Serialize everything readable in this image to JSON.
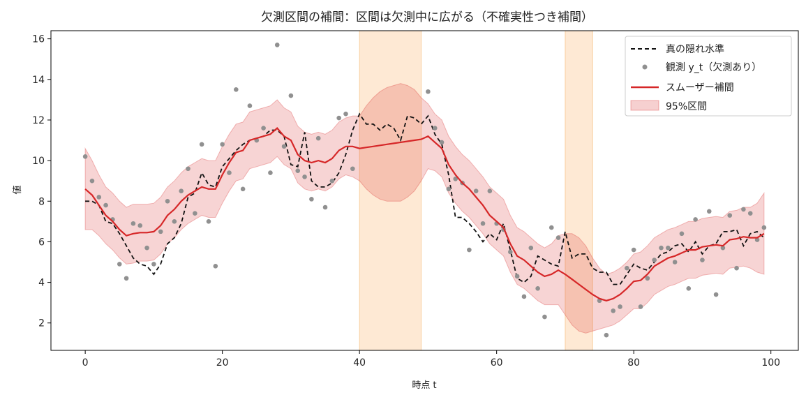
{
  "chart_data": {
    "type": "line",
    "title": "欠測区間の補間：区間は欠測中に広がる（不確実性つき補間）",
    "xlabel": "時点 t",
    "ylabel": "値",
    "xlim": [
      -5,
      104
    ],
    "ylim": [
      0.65,
      16.4
    ],
    "xticks": [
      0,
      20,
      40,
      60,
      80,
      100
    ],
    "yticks": [
      2,
      4,
      6,
      8,
      10,
      12,
      14,
      16
    ],
    "grid": false,
    "legend_position": "top-right",
    "missing_intervals": [
      [
        40,
        49
      ],
      [
        70,
        74
      ]
    ],
    "colors": {
      "truth": "#111111",
      "observed": "#909090",
      "smoother": "#d62728",
      "band": "#d62728",
      "missing": "#fdd7b0"
    },
    "legend": {
      "truth": "真の隠れ水準",
      "observed": "観測 y_t（欠測あり）",
      "smoother": "スムーザー補間",
      "band": "95%区間"
    },
    "series": [
      {
        "name": "真の隠れ水準",
        "x": [
          0,
          1,
          2,
          3,
          4,
          5,
          6,
          7,
          8,
          9,
          10,
          11,
          12,
          13,
          14,
          15,
          16,
          17,
          18,
          19,
          20,
          21,
          22,
          23,
          24,
          25,
          26,
          27,
          28,
          29,
          30,
          31,
          32,
          33,
          34,
          35,
          36,
          37,
          38,
          39,
          40,
          41,
          42,
          43,
          44,
          45,
          46,
          47,
          48,
          49,
          50,
          51,
          52,
          53,
          54,
          55,
          56,
          57,
          58,
          59,
          60,
          61,
          62,
          63,
          64,
          65,
          66,
          67,
          68,
          69,
          70,
          71,
          72,
          73,
          74,
          75,
          76,
          77,
          78,
          79,
          80,
          81,
          82,
          83,
          84,
          85,
          86,
          87,
          88,
          89,
          90,
          91,
          92,
          93,
          94,
          95,
          96,
          97,
          98,
          99
        ],
        "values": [
          8.0,
          8.0,
          7.8,
          7.0,
          6.9,
          6.4,
          5.8,
          5.2,
          4.9,
          4.8,
          4.4,
          4.9,
          5.9,
          6.2,
          6.9,
          8.2,
          8.4,
          9.4,
          8.8,
          8.7,
          9.7,
          10.1,
          10.5,
          10.8,
          11.0,
          11.1,
          11.2,
          11.5,
          11.5,
          11.2,
          9.8,
          9.7,
          11.4,
          9.0,
          8.7,
          8.7,
          8.9,
          9.4,
          10.3,
          11.5,
          12.3,
          11.8,
          11.8,
          11.5,
          11.8,
          11.6,
          11.0,
          12.2,
          12.1,
          11.8,
          12.2,
          11.3,
          10.8,
          9.3,
          7.2,
          7.2,
          6.9,
          6.5,
          6.0,
          6.4,
          6.1,
          6.9,
          5.6,
          4.2,
          4.0,
          4.3,
          5.3,
          5.1,
          4.9,
          4.8,
          6.5,
          5.2,
          5.4,
          5.4,
          4.7,
          4.5,
          4.5,
          3.9,
          3.9,
          4.4,
          4.9,
          4.7,
          4.6,
          5.0,
          5.4,
          5.5,
          5.8,
          5.9,
          5.5,
          6.0,
          5.4,
          5.8,
          5.9,
          6.5,
          6.5,
          6.6,
          5.8,
          6.4,
          6.5,
          6.2
        ]
      },
      {
        "name": "観測 y_t（欠測あり）",
        "x": [
          0,
          1,
          2,
          3,
          4,
          5,
          6,
          7,
          8,
          9,
          10,
          11,
          12,
          13,
          14,
          15,
          16,
          17,
          18,
          19,
          20,
          21,
          22,
          23,
          24,
          25,
          26,
          27,
          28,
          29,
          30,
          31,
          32,
          33,
          34,
          35,
          36,
          37,
          38,
          39,
          50,
          51,
          52,
          53,
          54,
          55,
          56,
          57,
          58,
          59,
          60,
          61,
          62,
          63,
          64,
          65,
          66,
          67,
          68,
          69,
          75,
          76,
          77,
          78,
          79,
          80,
          81,
          82,
          83,
          84,
          85,
          86,
          87,
          88,
          89,
          90,
          91,
          92,
          93,
          94,
          95,
          96,
          97,
          98,
          99
        ],
        "values": [
          10.2,
          9.0,
          8.2,
          7.8,
          7.1,
          4.9,
          4.2,
          6.9,
          6.8,
          5.7,
          4.9,
          6.5,
          8.0,
          7.0,
          8.5,
          9.6,
          7.4,
          10.8,
          7.0,
          4.8,
          10.8,
          9.4,
          13.5,
          8.6,
          12.7,
          11.0,
          11.6,
          9.4,
          15.7,
          10.7,
          13.2,
          9.5,
          9.2,
          8.1,
          11.1,
          7.7,
          9.0,
          12.1,
          12.3,
          9.6,
          13.4,
          11.6,
          10.9,
          8.6,
          9.1,
          8.9,
          5.6,
          8.5,
          6.9,
          8.5,
          6.9,
          6.6,
          5.5,
          4.3,
          3.3,
          5.7,
          3.7,
          2.3,
          6.7,
          6.2,
          3.1,
          1.4,
          2.6,
          2.8,
          4.7,
          5.6,
          2.8,
          4.2,
          5.1,
          5.7,
          5.7,
          5.0,
          6.4,
          3.7,
          7.1,
          5.1,
          7.5,
          3.4,
          5.7,
          7.3,
          4.7,
          7.6,
          7.4,
          6.1,
          6.7
        ]
      },
      {
        "name": "スムーザー補間",
        "x": [
          0,
          1,
          2,
          3,
          4,
          5,
          6,
          7,
          8,
          9,
          10,
          11,
          12,
          13,
          14,
          15,
          16,
          17,
          18,
          19,
          20,
          21,
          22,
          23,
          24,
          25,
          26,
          27,
          28,
          29,
          30,
          31,
          32,
          33,
          34,
          35,
          36,
          37,
          38,
          39,
          40,
          41,
          42,
          43,
          44,
          45,
          46,
          47,
          48,
          49,
          50,
          51,
          52,
          53,
          54,
          55,
          56,
          57,
          58,
          59,
          60,
          61,
          62,
          63,
          64,
          65,
          66,
          67,
          68,
          69,
          70,
          71,
          72,
          73,
          74,
          75,
          76,
          77,
          78,
          79,
          80,
          81,
          82,
          83,
          84,
          85,
          86,
          87,
          88,
          89,
          90,
          91,
          92,
          93,
          94,
          95,
          96,
          97,
          98,
          99
        ],
        "values": [
          8.6,
          8.3,
          7.8,
          7.3,
          7.0,
          6.6,
          6.3,
          6.4,
          6.45,
          6.45,
          6.5,
          6.8,
          7.3,
          7.6,
          8.0,
          8.3,
          8.5,
          8.7,
          8.6,
          8.6,
          9.3,
          9.9,
          10.4,
          10.5,
          11.0,
          11.1,
          11.2,
          11.3,
          11.6,
          11.2,
          11.0,
          10.3,
          10.0,
          9.9,
          10.0,
          9.9,
          10.1,
          10.5,
          10.7,
          10.7,
          10.6,
          10.65,
          10.7,
          10.75,
          10.8,
          10.85,
          10.9,
          10.95,
          11.0,
          11.05,
          11.2,
          10.9,
          10.6,
          9.8,
          9.3,
          8.9,
          8.6,
          8.2,
          7.8,
          7.3,
          7.0,
          6.7,
          5.9,
          5.3,
          5.1,
          4.8,
          4.5,
          4.3,
          4.4,
          4.6,
          4.4,
          4.15,
          3.9,
          3.65,
          3.4,
          3.2,
          3.1,
          3.2,
          3.4,
          3.7,
          4.05,
          4.1,
          4.4,
          4.8,
          5.0,
          5.2,
          5.3,
          5.45,
          5.6,
          5.6,
          5.75,
          5.8,
          5.85,
          5.8,
          6.1,
          6.15,
          6.25,
          6.2,
          6.2,
          6.4
        ]
      }
    ],
    "band": {
      "name": "95%区間",
      "x": [
        0,
        1,
        2,
        3,
        4,
        5,
        6,
        7,
        8,
        9,
        10,
        11,
        12,
        13,
        14,
        15,
        16,
        17,
        18,
        19,
        20,
        21,
        22,
        23,
        24,
        25,
        26,
        27,
        28,
        29,
        30,
        31,
        32,
        33,
        34,
        35,
        36,
        37,
        38,
        39,
        40,
        41,
        42,
        43,
        44,
        45,
        46,
        47,
        48,
        49,
        50,
        51,
        52,
        53,
        54,
        55,
        56,
        57,
        58,
        59,
        60,
        61,
        62,
        63,
        64,
        65,
        66,
        67,
        68,
        69,
        70,
        71,
        72,
        73,
        74,
        75,
        76,
        77,
        78,
        79,
        80,
        81,
        82,
        83,
        84,
        85,
        86,
        87,
        88,
        89,
        90,
        91,
        92,
        93,
        94,
        95,
        96,
        97,
        98,
        99
      ],
      "lower": [
        6.6,
        6.6,
        6.3,
        5.9,
        5.6,
        5.2,
        4.9,
        4.95,
        5.05,
        5.05,
        5.1,
        5.4,
        5.9,
        6.2,
        6.6,
        6.9,
        7.1,
        7.3,
        7.2,
        7.2,
        7.9,
        8.5,
        9.0,
        9.1,
        9.6,
        9.7,
        9.8,
        9.9,
        10.2,
        9.8,
        9.6,
        8.9,
        8.6,
        8.5,
        8.6,
        8.5,
        8.7,
        9.1,
        9.3,
        9.2,
        9.0,
        8.6,
        8.3,
        8.1,
        8.0,
        8.0,
        8.0,
        8.2,
        8.5,
        9.0,
        9.6,
        9.5,
        9.2,
        8.4,
        7.9,
        7.5,
        7.2,
        6.8,
        6.4,
        5.9,
        5.6,
        5.3,
        4.5,
        3.9,
        3.7,
        3.4,
        3.1,
        2.9,
        2.9,
        2.9,
        2.4,
        1.9,
        1.6,
        1.5,
        1.6,
        1.7,
        1.8,
        1.9,
        2.1,
        2.4,
        2.7,
        2.7,
        3.0,
        3.4,
        3.6,
        3.8,
        3.9,
        4.05,
        4.2,
        4.2,
        4.35,
        4.4,
        4.45,
        4.4,
        4.7,
        4.75,
        4.8,
        4.7,
        4.5,
        4.4
      ]
    }
  }
}
